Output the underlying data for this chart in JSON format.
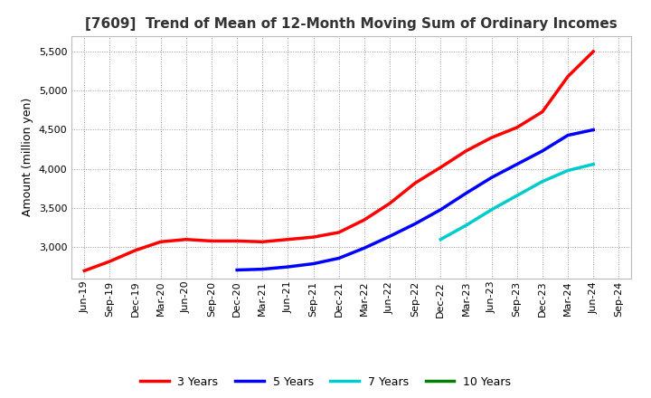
{
  "title": "[7609]  Trend of Mean of 12-Month Moving Sum of Ordinary Incomes",
  "ylabel": "Amount (million yen)",
  "background_color": "#ffffff",
  "grid_color": "#999999",
  "ylim": [
    2600,
    5700
  ],
  "yticks": [
    3000,
    3500,
    4000,
    4500,
    5000,
    5500
  ],
  "series": {
    "3 Years": {
      "color": "#ff0000",
      "x": [
        "Jun-19",
        "Sep-19",
        "Dec-19",
        "Mar-20",
        "Jun-20",
        "Sep-20",
        "Dec-20",
        "Mar-21",
        "Jun-21",
        "Sep-21",
        "Dec-21",
        "Mar-22",
        "Jun-22",
        "Sep-22",
        "Dec-22",
        "Mar-23",
        "Jun-23",
        "Sep-23",
        "Dec-23",
        "Mar-24",
        "Jun-24"
      ],
      "y": [
        2700,
        2820,
        2960,
        3070,
        3100,
        3080,
        3080,
        3070,
        3100,
        3130,
        3190,
        3350,
        3560,
        3820,
        4020,
        4230,
        4400,
        4530,
        4730,
        5180,
        5500
      ]
    },
    "5 Years": {
      "color": "#0000ff",
      "x": [
        "Dec-20",
        "Mar-21",
        "Jun-21",
        "Sep-21",
        "Dec-21",
        "Mar-22",
        "Jun-22",
        "Sep-22",
        "Dec-22",
        "Mar-23",
        "Jun-23",
        "Sep-23",
        "Dec-23",
        "Mar-24",
        "Jun-24"
      ],
      "y": [
        2710,
        2720,
        2750,
        2790,
        2860,
        2990,
        3140,
        3300,
        3480,
        3690,
        3890,
        4060,
        4230,
        4430,
        4500
      ]
    },
    "7 Years": {
      "color": "#00cccc",
      "x": [
        "Dec-22",
        "Mar-23",
        "Jun-23",
        "Sep-23",
        "Dec-23",
        "Mar-24",
        "Jun-24"
      ],
      "y": [
        3100,
        3280,
        3480,
        3660,
        3840,
        3980,
        4060
      ]
    },
    "10 Years": {
      "color": "#008000",
      "x": [],
      "y": []
    }
  },
  "x_all_labels": [
    "Jun-19",
    "Sep-19",
    "Dec-19",
    "Mar-20",
    "Jun-20",
    "Sep-20",
    "Dec-20",
    "Mar-21",
    "Jun-21",
    "Sep-21",
    "Dec-21",
    "Mar-22",
    "Jun-22",
    "Sep-22",
    "Dec-22",
    "Mar-23",
    "Jun-23",
    "Sep-23",
    "Dec-23",
    "Mar-24",
    "Jun-24",
    "Sep-24"
  ],
  "title_fontsize": 11,
  "ylabel_fontsize": 9,
  "tick_fontsize": 8,
  "legend_fontsize": 9,
  "linewidth": 2.5
}
